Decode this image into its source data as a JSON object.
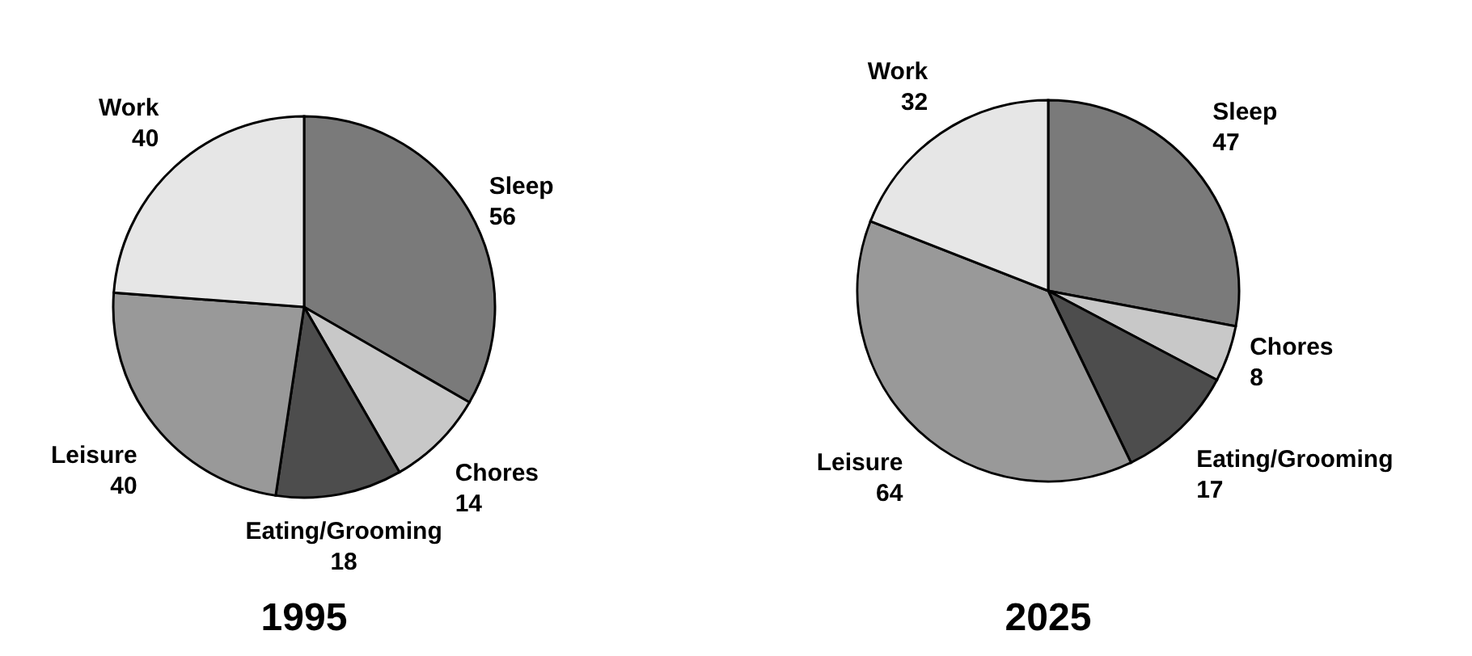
{
  "chart_data": [
    {
      "type": "pie",
      "title": "1995",
      "categories": [
        "Sleep",
        "Chores",
        "Eating/Grooming",
        "Leisure",
        "Work"
      ],
      "values": [
        56,
        14,
        18,
        40,
        40
      ],
      "colors": [
        "#7a7a7a",
        "#c8c8c8",
        "#4d4d4d",
        "#999999",
        "#e6e6e6"
      ],
      "data_labels": true,
      "legend": false
    },
    {
      "type": "pie",
      "title": "2025",
      "categories": [
        "Sleep",
        "Chores",
        "Eating/Grooming",
        "Leisure",
        "Work"
      ],
      "values": [
        47,
        8,
        17,
        64,
        32
      ],
      "colors": [
        "#7a7a7a",
        "#c8c8c8",
        "#4d4d4d",
        "#999999",
        "#e6e6e6"
      ],
      "data_labels": true,
      "legend": false
    }
  ]
}
